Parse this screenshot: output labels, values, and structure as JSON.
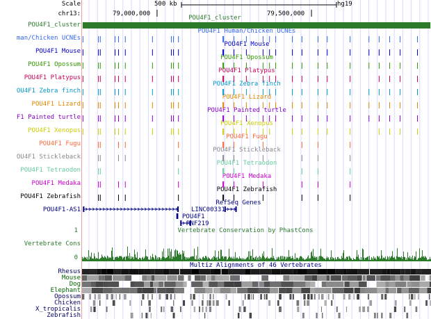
{
  "header": {
    "scale_label": "Scale",
    "scale_value": "500 kb",
    "assembly": "hg19",
    "chrom_label": "chr13:",
    "ticks": [
      {
        "label": "79,000,000",
        "pos": 79.0
      },
      {
        "label": "79,500,000",
        "pos": 79.5
      }
    ]
  },
  "view": {
    "start_mb": 78.757,
    "end_mb": 79.887
  },
  "cluster": {
    "label": "POU4F1_cluster",
    "title": "POU4F1_cluster",
    "color": "#2a7a2a",
    "start_mb": 78.759,
    "end_mb": 79.885
  },
  "ucne_positions_mb": [
    78.759,
    78.809,
    78.815,
    78.863,
    78.874,
    78.896,
    78.984,
    79.045,
    79.052,
    79.068,
    79.212,
    79.248,
    79.288,
    79.342,
    79.363,
    79.383,
    79.437,
    79.468,
    79.52,
    79.55,
    79.624,
    79.685,
    79.718,
    79.752,
    79.786,
    79.842
  ],
  "species_tracks": [
    {
      "label": "man/Chicken UCNEs",
      "title": "POU4F1 Human/Chicken UCNEs",
      "color": "#3366ee",
      "present": [
        0,
        1,
        2,
        3,
        4,
        5,
        6,
        7,
        8,
        9,
        10,
        11,
        12,
        13,
        14,
        15,
        16,
        17,
        18,
        19,
        20,
        21,
        22,
        23,
        24,
        25
      ]
    },
    {
      "label": "POU4F1 Mouse",
      "title": "POU4F1 Mouse",
      "color": "#0000cc",
      "present": [
        0,
        1,
        2,
        3,
        4,
        5,
        6,
        7,
        8,
        9,
        10,
        11,
        12,
        13,
        14,
        15,
        16,
        17,
        18,
        19,
        20,
        21,
        22,
        23,
        24,
        25
      ]
    },
    {
      "label": "POU4F1 Opossum",
      "title": "POU4F1 Opossum",
      "color": "#339900",
      "present": [
        0,
        1,
        2,
        3,
        4,
        5,
        6,
        7,
        8,
        9,
        10,
        11,
        12,
        13,
        14,
        15,
        16,
        17,
        18,
        19,
        20,
        21,
        22,
        23,
        24,
        25
      ]
    },
    {
      "label": "POU4F1 Platypus",
      "title": "POU4F1 Platypus",
      "color": "#cc0055",
      "present": [
        0,
        1,
        2,
        3,
        4,
        5,
        6,
        7,
        8,
        9,
        10,
        11,
        12,
        13,
        14,
        15,
        16,
        17,
        18,
        19,
        20,
        22,
        23,
        24,
        25
      ]
    },
    {
      "label": "OU4F1 Zebra finch",
      "title": "POU4F1 Zebra finch",
      "color": "#0099cc",
      "present": [
        0,
        1,
        2,
        3,
        4,
        5,
        6,
        7,
        8,
        9,
        10,
        11,
        12,
        13,
        14,
        15,
        16,
        17,
        18,
        19,
        20,
        21,
        22,
        23,
        24,
        25
      ]
    },
    {
      "label": "POU4F1 Lizard",
      "title": "POU4F1 Lizard",
      "color": "#dd8800",
      "present": [
        0,
        1,
        2,
        3,
        4,
        5,
        6,
        7,
        8,
        9,
        10,
        11,
        12,
        13,
        14,
        15,
        16,
        17,
        18,
        19,
        20,
        21,
        22,
        23,
        24,
        25
      ]
    },
    {
      "label": "F1 Painted turtle",
      "title": "POU4F1 Painted turtle",
      "color": "#8800cc",
      "present": [
        0,
        1,
        2,
        3,
        4,
        5,
        6,
        7,
        8,
        9,
        10,
        11,
        12,
        13,
        14,
        15,
        16,
        17,
        18,
        19,
        20,
        21,
        22,
        23,
        24,
        25
      ]
    },
    {
      "label": "POU4F1 Xenopus",
      "title": "POU4F1 Xenopus",
      "color": "#cccc00",
      "present": [
        0,
        1,
        2,
        3,
        4,
        5,
        6,
        7,
        8,
        9,
        10,
        11,
        12,
        13,
        14,
        16,
        17,
        18,
        19,
        20,
        22,
        23,
        24,
        25
      ]
    },
    {
      "label": "POU4F1 Fugu",
      "title": "POU4F1 Fugu",
      "color": "#ff6633",
      "present": [
        1,
        2,
        4,
        5,
        9,
        10,
        11,
        13,
        17,
        18,
        20
      ]
    },
    {
      "label": "OU4F1 Stickleback",
      "title": "POU4F1 Stickleback",
      "color": "#888888",
      "present": [
        1,
        2,
        4,
        5,
        9,
        10,
        11,
        13,
        17,
        18,
        20
      ]
    },
    {
      "label": "POU4F1 Tetraodon",
      "title": "POU4F1 Tetraodon",
      "color": "#66cc99",
      "present": [
        1,
        2,
        9,
        10,
        11,
        17,
        18,
        20
      ]
    },
    {
      "label": "POU4F1 Medaka",
      "title": "POU4F1 Medaka",
      "color": "#cc00cc",
      "present": [
        1,
        2,
        4,
        5,
        9,
        10,
        11,
        13,
        17,
        18,
        20
      ]
    },
    {
      "label": "POU4F1 Zebrafish",
      "title": "POU4F1 Zebrafish",
      "color": "#000000",
      "present": [
        1,
        2,
        4,
        5,
        9,
        10,
        11,
        13,
        17,
        18,
        20
      ]
    }
  ],
  "refseq": {
    "title": "RefSeq Genes",
    "genes": [
      {
        "name": "POU4F1-AS1",
        "start_mb": 78.76,
        "end_mb": 79.07,
        "row": 0,
        "label_side": "left"
      },
      {
        "name": "LINC00331",
        "start_mb": 79.218,
        "end_mb": 79.258,
        "row": 0,
        "label_side": "left"
      },
      {
        "name": "POU4F1",
        "start_mb": 79.064,
        "end_mb": 79.067,
        "row": 1,
        "label_side": "left"
      },
      {
        "name": "RNF219",
        "start_mb": 79.075,
        "end_mb": 79.11,
        "row": 2,
        "label_side": "left"
      }
    ]
  },
  "conservation": {
    "label": "Vertebrate Cons",
    "title": "Vertebrate Conservation by PhastCons",
    "ymax": "1",
    "ymin": "0",
    "color": "#2a7a2a"
  },
  "multiz": {
    "title": "Multiz Alignments of 46 Vertebrates",
    "species": [
      {
        "name": "Rhesus",
        "color": "#000066"
      },
      {
        "name": "Mouse",
        "color": "#006600"
      },
      {
        "name": "Dog",
        "color": "#006600"
      },
      {
        "name": "Elephant",
        "color": "#006600"
      },
      {
        "name": "Opossum",
        "color": "#000066"
      },
      {
        "name": "Chicken",
        "color": "#000066"
      },
      {
        "name": "X_tropicalis",
        "color": "#000066"
      },
      {
        "name": "Zebrafish",
        "color": "#000066"
      }
    ]
  }
}
